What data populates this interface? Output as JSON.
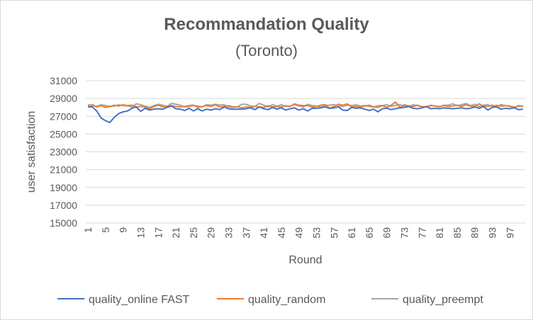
{
  "chart_data": {
    "type": "line",
    "title": "Recommandation Quality",
    "subtitle": "(Toronto)",
    "xlabel": "Round",
    "ylabel": "user satisfaction",
    "ylim": [
      15000,
      31000
    ],
    "yticks": [
      15000,
      17000,
      19000,
      21000,
      23000,
      25000,
      27000,
      29000,
      31000
    ],
    "xticks": [
      1,
      5,
      9,
      13,
      17,
      21,
      25,
      29,
      33,
      37,
      41,
      45,
      49,
      53,
      57,
      61,
      65,
      69,
      73,
      77,
      81,
      85,
      89,
      93,
      97
    ],
    "x_count": 100,
    "grid": "horizontal",
    "legend_position": "bottom",
    "series": [
      {
        "name": "quality_online FAST",
        "color": "#4472c4",
        "values": [
          28050,
          28050,
          27600,
          26800,
          26500,
          26300,
          26900,
          27300,
          27500,
          27600,
          27900,
          28050,
          27550,
          27900,
          27700,
          27800,
          27850,
          27800,
          28000,
          28150,
          27850,
          27800,
          27650,
          27900,
          27600,
          27850,
          27600,
          27800,
          27700,
          27850,
          27750,
          28050,
          27850,
          27800,
          27800,
          27800,
          27850,
          27950,
          27750,
          28050,
          27850,
          27750,
          28000,
          27800,
          27950,
          27700,
          27850,
          27950,
          27700,
          27850,
          27600,
          27900,
          27900,
          27950,
          28050,
          27900,
          27950,
          28050,
          27700,
          27650,
          28000,
          27900,
          27950,
          27800,
          27650,
          27800,
          27500,
          27850,
          27900,
          27750,
          27850,
          27950,
          28000,
          28100,
          27900,
          27850,
          27950,
          28100,
          27850,
          27900,
          27850,
          27950,
          27900,
          27850,
          27900,
          27950,
          27850,
          27900,
          28050,
          27900,
          28100,
          27700,
          28000,
          28050,
          27800,
          27900,
          27850,
          27950,
          27750,
          27800
        ]
      },
      {
        "name": "quality_random",
        "color": "#ed7d31",
        "values": [
          28200,
          28300,
          28050,
          28200,
          28000,
          28100,
          28250,
          28150,
          28300,
          28200,
          28250,
          28050,
          28100,
          28050,
          27850,
          28100,
          28250,
          28050,
          28150,
          28200,
          28100,
          28050,
          28100,
          28200,
          28250,
          28000,
          28100,
          28200,
          28100,
          28300,
          28050,
          28100,
          28200,
          28050,
          28050,
          27950,
          28050,
          28000,
          28100,
          28050,
          28000,
          28200,
          28050,
          28100,
          28050,
          28200,
          28100,
          28400,
          28250,
          28200,
          28200,
          28050,
          28100,
          28250,
          28300,
          27900,
          28100,
          28350,
          28250,
          28400,
          28050,
          28100,
          28050,
          28150,
          28250,
          28050,
          28000,
          28200,
          28000,
          28250,
          28600,
          28000,
          28300,
          28150,
          28100,
          28250,
          28050,
          28050,
          28200,
          28150,
          28050,
          28250,
          28100,
          28150,
          28250,
          28100,
          28300,
          28150,
          28100,
          28400,
          28150,
          28100,
          28250,
          28050,
          28300,
          28200,
          28100,
          28000,
          28200,
          28100
        ]
      },
      {
        "name": "quality_preempt",
        "color": "#a5a5a5",
        "values": [
          28300,
          28200,
          28100,
          28300,
          28200,
          28100,
          28150,
          28300,
          28200,
          28150,
          28050,
          28400,
          28300,
          28150,
          28000,
          28200,
          28350,
          28250,
          28100,
          28450,
          28350,
          28250,
          28050,
          28100,
          28200,
          28150,
          28050,
          28300,
          28250,
          28350,
          28250,
          28300,
          28050,
          28000,
          28050,
          28350,
          28350,
          28150,
          28100,
          28450,
          28250,
          28050,
          28300,
          28150,
          28300,
          28100,
          28150,
          28300,
          28150,
          28050,
          28350,
          28200,
          28150,
          28050,
          28200,
          28250,
          28300,
          28150,
          28100,
          28250,
          28200,
          28300,
          28150,
          28200,
          28100,
          28050,
          28200,
          28200,
          28300,
          28100,
          28250,
          28300,
          28150,
          28100,
          28300,
          28200,
          28100,
          28050,
          28250,
          28150,
          28100,
          28200,
          28250,
          28400,
          28200,
          28300,
          28450,
          28200,
          28350,
          28100,
          28250,
          28300,
          28100,
          28250,
          28100,
          28200,
          28150,
          28050,
          28100,
          28200
        ]
      }
    ]
  }
}
